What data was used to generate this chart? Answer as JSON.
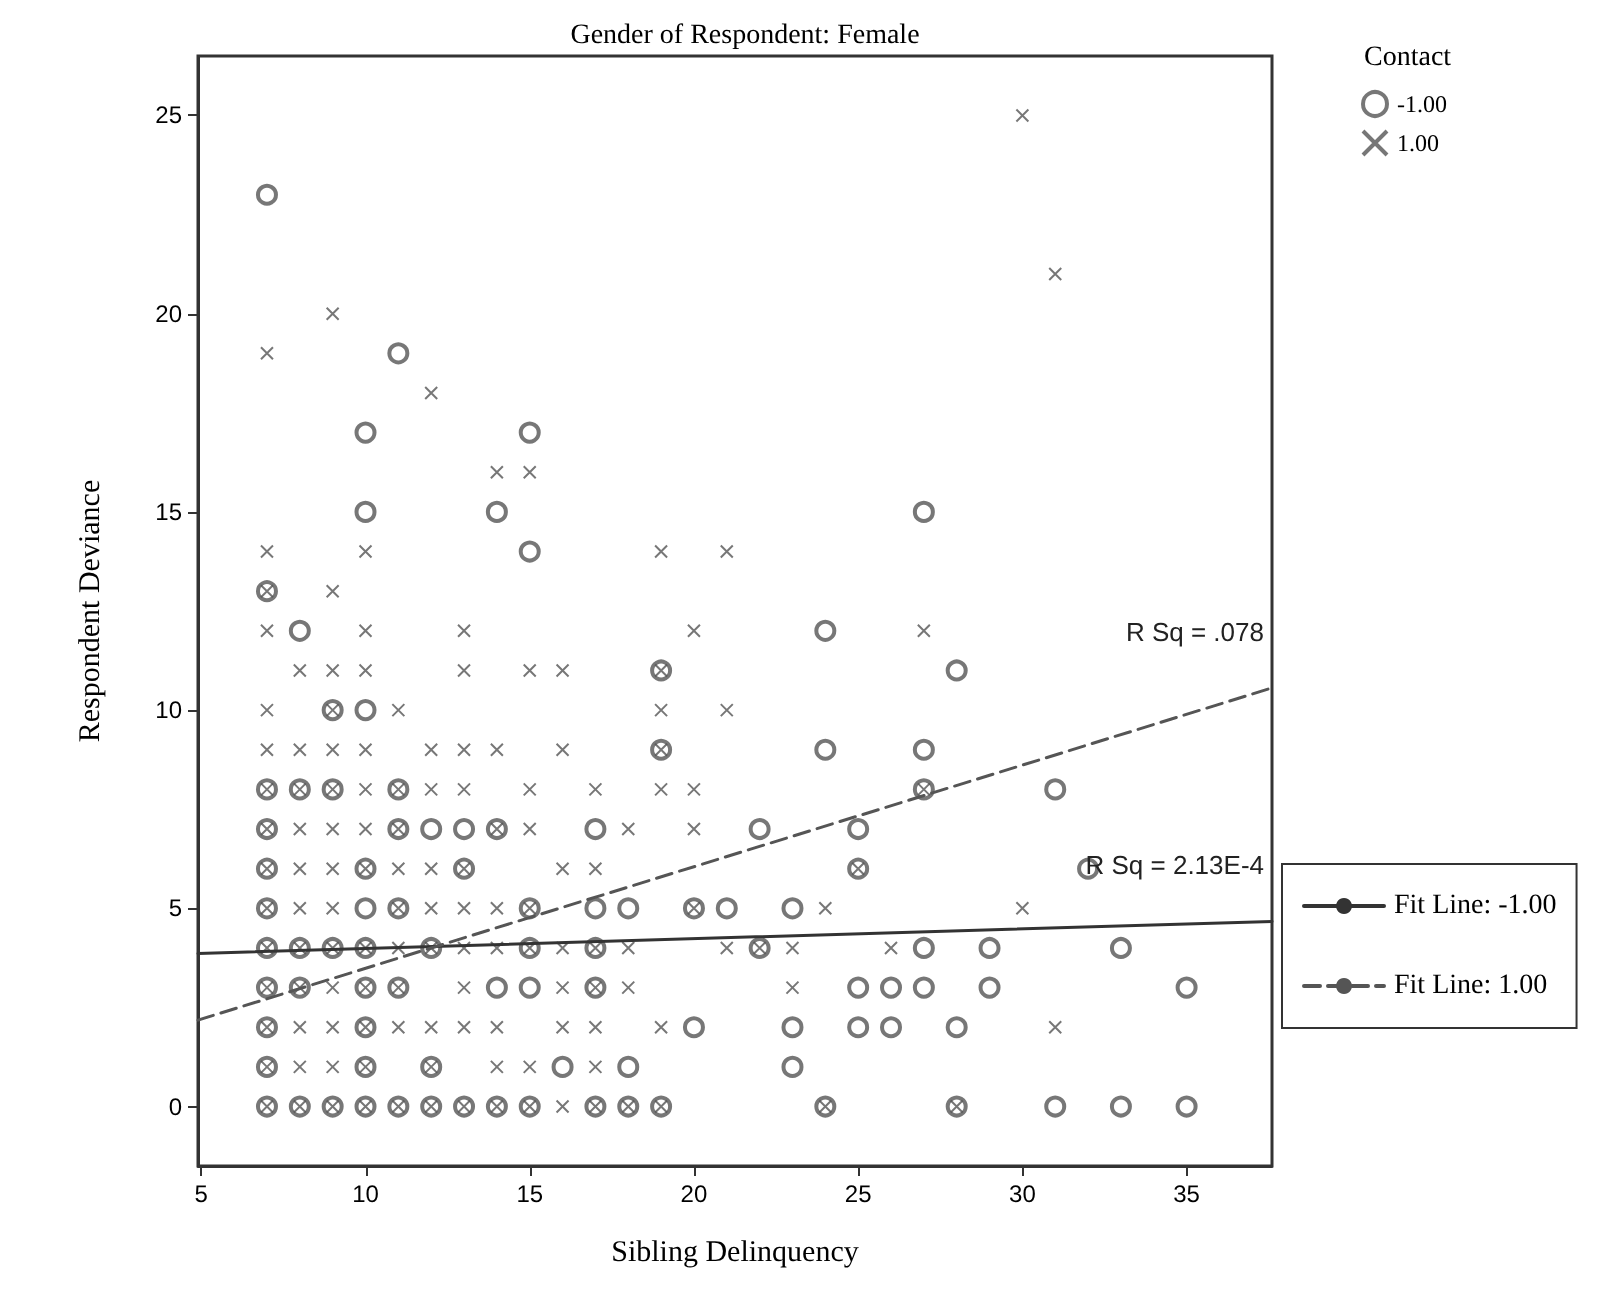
{
  "chart_data": {
    "type": "scatter",
    "title": "Gender of Respondent: Female",
    "xlabel": "Sibling Delinquency",
    "ylabel": "Respondent Deviance",
    "legend_title": "Contact",
    "legend": "top right",
    "grid": false,
    "xlim": [
      4.9,
      37.6
    ],
    "xticks": [
      5,
      10,
      15,
      20,
      25,
      30,
      35
    ],
    "ylim": [
      -1.5,
      26.5
    ],
    "yticks": [
      0,
      5,
      10,
      15,
      20,
      25
    ],
    "annotations": [
      "R Sq = .078",
      "R Sq = 2.13E-4"
    ],
    "series": [
      {
        "name": "-1.00",
        "marker": "circle",
        "color": "#555555",
        "x": [
          7,
          8,
          9,
          10,
          11,
          12,
          13,
          14,
          15,
          17,
          18,
          19,
          24,
          28,
          31,
          33,
          35,
          7,
          10,
          12,
          16,
          18,
          23,
          7,
          10,
          20,
          23,
          25,
          26,
          28,
          7,
          8,
          10,
          11,
          14,
          15,
          17,
          25,
          26,
          27,
          29,
          35,
          7,
          8,
          9,
          10,
          12,
          15,
          17,
          22,
          27,
          29,
          33,
          7,
          10,
          11,
          15,
          17,
          18,
          20,
          21,
          23,
          7,
          10,
          13,
          25,
          32,
          7,
          11,
          12,
          13,
          14,
          17,
          22,
          25,
          7,
          8,
          9,
          11,
          27,
          31,
          19,
          24,
          27,
          9,
          10,
          19,
          28,
          8,
          24,
          7,
          15,
          10,
          14,
          27,
          10,
          15,
          11,
          7
        ],
        "values": [
          0,
          0,
          0,
          0,
          0,
          0,
          0,
          0,
          0,
          0,
          0,
          0,
          0,
          0,
          0,
          0,
          0,
          1,
          1,
          1,
          1,
          1,
          1,
          2,
          2,
          2,
          2,
          2,
          2,
          2,
          3,
          3,
          3,
          3,
          3,
          3,
          3,
          3,
          3,
          3,
          3,
          3,
          4,
          4,
          4,
          4,
          4,
          4,
          4,
          4,
          4,
          4,
          4,
          5,
          5,
          5,
          5,
          5,
          5,
          5,
          5,
          5,
          6,
          6,
          6,
          6,
          6,
          7,
          7,
          7,
          7,
          7,
          7,
          7,
          7,
          8,
          8,
          8,
          8,
          8,
          8,
          9,
          9,
          9,
          10,
          10,
          11,
          11,
          12,
          12,
          13,
          14,
          15,
          15,
          15,
          17,
          17,
          19,
          23
        ]
      },
      {
        "name": "1.00",
        "marker": "cross",
        "color": "#555555",
        "x": [
          7,
          8,
          9,
          10,
          11,
          12,
          13,
          14,
          15,
          16,
          17,
          18,
          19,
          24,
          28,
          7,
          8,
          9,
          10,
          12,
          14,
          15,
          17,
          7,
          8,
          9,
          10,
          11,
          12,
          13,
          14,
          16,
          17,
          19,
          31,
          7,
          8,
          9,
          10,
          11,
          13,
          16,
          17,
          18,
          23,
          7,
          8,
          9,
          10,
          11,
          12,
          13,
          14,
          15,
          16,
          17,
          18,
          21,
          22,
          23,
          26,
          7,
          8,
          9,
          11,
          12,
          13,
          14,
          15,
          20,
          24,
          30,
          7,
          8,
          9,
          10,
          11,
          12,
          13,
          16,
          17,
          25,
          7,
          8,
          9,
          10,
          11,
          14,
          15,
          18,
          20,
          7,
          8,
          9,
          10,
          11,
          12,
          13,
          15,
          17,
          19,
          20,
          27,
          7,
          8,
          9,
          10,
          12,
          13,
          14,
          16,
          19,
          7,
          9,
          11,
          19,
          21,
          8,
          9,
          10,
          13,
          15,
          16,
          19,
          7,
          10,
          13,
          20,
          27,
          7,
          9,
          7,
          10,
          19,
          21,
          14,
          15,
          12,
          7,
          9,
          31,
          30
        ],
        "values": [
          0,
          0,
          0,
          0,
          0,
          0,
          0,
          0,
          0,
          0,
          0,
          0,
          0,
          0,
          0,
          1,
          1,
          1,
          1,
          1,
          1,
          1,
          1,
          2,
          2,
          2,
          2,
          2,
          2,
          2,
          2,
          2,
          2,
          2,
          2,
          3,
          3,
          3,
          3,
          3,
          3,
          3,
          3,
          3,
          3,
          4,
          4,
          4,
          4,
          4,
          4,
          4,
          4,
          4,
          4,
          4,
          4,
          4,
          4,
          4,
          4,
          5,
          5,
          5,
          5,
          5,
          5,
          5,
          5,
          5,
          5,
          5,
          6,
          6,
          6,
          6,
          6,
          6,
          6,
          6,
          6,
          6,
          7,
          7,
          7,
          7,
          7,
          7,
          7,
          7,
          7,
          8,
          8,
          8,
          8,
          8,
          8,
          8,
          8,
          8,
          8,
          8,
          8,
          9,
          9,
          9,
          9,
          9,
          9,
          9,
          9,
          9,
          10,
          10,
          10,
          10,
          10,
          11,
          11,
          11,
          11,
          11,
          11,
          11,
          12,
          12,
          12,
          12,
          12,
          13,
          13,
          14,
          14,
          14,
          14,
          16,
          16,
          18,
          19,
          20,
          21,
          25
        ]
      },
      {
        "name": "Fit Line: -1.00",
        "type": "line",
        "line_style": "solid",
        "marker": "none",
        "color": "#333333",
        "x": [
          4.9,
          37.6
        ],
        "values": [
          3.86,
          4.67
        ]
      },
      {
        "name": "Fit Line: 1.00",
        "type": "line",
        "line_style": "dashed",
        "marker": "none",
        "color": "#555555",
        "x": [
          4.9,
          37.6
        ],
        "values": [
          2.18,
          10.56
        ]
      }
    ]
  }
}
